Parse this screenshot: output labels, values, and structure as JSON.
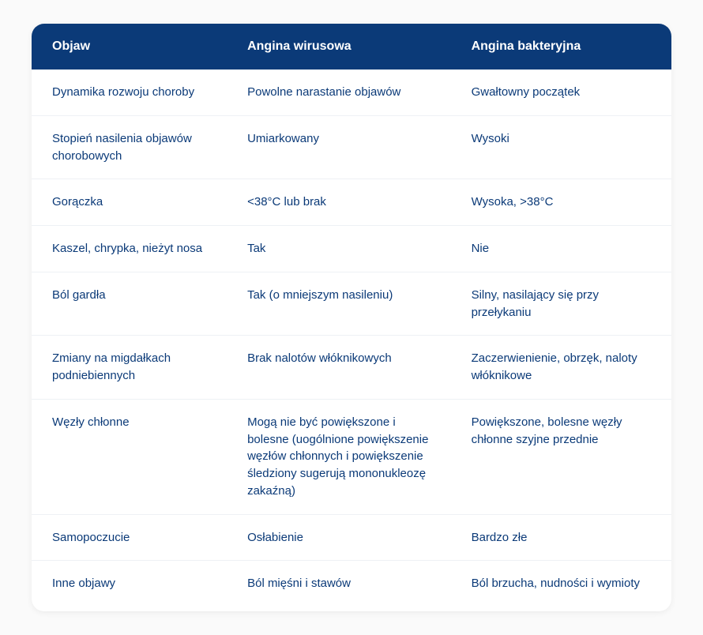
{
  "table": {
    "columns": [
      "Objaw",
      "Angina wirusowa",
      "Angina bakteryjna"
    ],
    "rows": [
      [
        "Dynamika rozwoju choroby",
        "Powolne narastanie objawów",
        "Gwałtowny początek"
      ],
      [
        "Stopień nasilenia objawów chorobowych",
        "Umiarkowany",
        "Wysoki"
      ],
      [
        "Gorączka",
        "<38°C lub brak",
        "Wysoka, >38°C"
      ],
      [
        "Kaszel, chrypka, nieżyt nosa",
        "Tak",
        "Nie"
      ],
      [
        "Ból gardła",
        "Tak (o mniejszym nasileniu)",
        "Silny, nasilający się przy przełykaniu"
      ],
      [
        "Zmiany na migdałkach podniebiennych",
        "Brak nalotów włóknikowych",
        "Zaczerwienienie, obrzęk, naloty włóknikowe"
      ],
      [
        "Węzły chłonne",
        "Mogą nie być powiększone i bolesne (uogólnione powiększenie węzłów chłonnych i powiększenie śledziony sugerują mononukleozę zakaźną)",
        "Powiększone, bolesne węzły chłonne szyjne przednie"
      ],
      [
        "Samopoczucie",
        "Osłabienie",
        "Bardzo złe"
      ],
      [
        "Inne objawy",
        "Ból mięśni i stawów",
        "Ból brzucha, nudności i wymioty"
      ]
    ],
    "header_bg_color": "#0b3a78",
    "header_text_color": "#ffffff",
    "cell_text_color": "#0b3a78",
    "border_color": "#eef1f5",
    "background_color": "#ffffff",
    "page_background_color": "#fafafa",
    "header_fontsize": 16,
    "cell_fontsize": 15,
    "border_radius": 16,
    "column_widths_pct": [
      31,
      35,
      34
    ]
  }
}
